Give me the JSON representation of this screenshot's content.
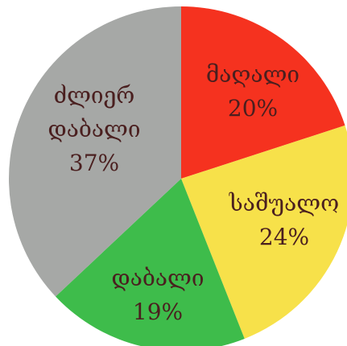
{
  "chart_data": {
    "type": "pie",
    "title": "",
    "slices": [
      {
        "label": "მაღალი",
        "value": 20,
        "display": "20%",
        "color": "#f5321f"
      },
      {
        "label": "საშუალო",
        "value": 24,
        "display": "24%",
        "color": "#f7e14a"
      },
      {
        "label": "დაბალი",
        "value": 19,
        "display": "19%",
        "color": "#3ebc4b"
      },
      {
        "label": "ძლიერ დაბალი",
        "value": 37,
        "display": "37%",
        "color": "#a6a8a6"
      }
    ],
    "start_angle_deg": 0,
    "direction": "clockwise",
    "legend": "none"
  }
}
